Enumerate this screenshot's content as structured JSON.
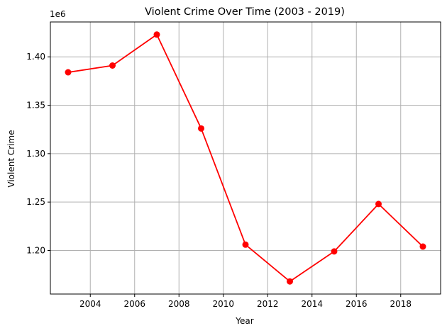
{
  "chart_data": {
    "type": "line",
    "title": "Violent Crime Over Time (2003 - 2019)",
    "xlabel": "Year",
    "ylabel": "Violent Crime",
    "offset_label": "1e6",
    "x": [
      2003,
      2005,
      2007,
      2009,
      2011,
      2013,
      2015,
      2017,
      2019
    ],
    "series": [
      {
        "values": [
          1.384,
          1.391,
          1.423,
          1.326,
          1.206,
          1.168,
          1.199,
          1.248,
          1.204
        ],
        "color": "#ff0000",
        "marker": "circle"
      }
    ],
    "xlim": [
      2002.2,
      2019.8
    ],
    "ylim": [
      1.155,
      1.436
    ],
    "xticks": [
      2004,
      2006,
      2008,
      2010,
      2012,
      2014,
      2016,
      2018
    ],
    "xtick_labels": [
      "2004",
      "2006",
      "2008",
      "2010",
      "2012",
      "2014",
      "2016",
      "2018"
    ],
    "yticks": [
      1.2,
      1.25,
      1.3,
      1.35,
      1.4
    ],
    "ytick_labels": [
      "1.20",
      "1.25",
      "1.30",
      "1.35",
      "1.40"
    ],
    "grid": true,
    "colors": {
      "line": "#ff0000",
      "grid": "#b0b0b0",
      "axes": "#000000"
    }
  }
}
